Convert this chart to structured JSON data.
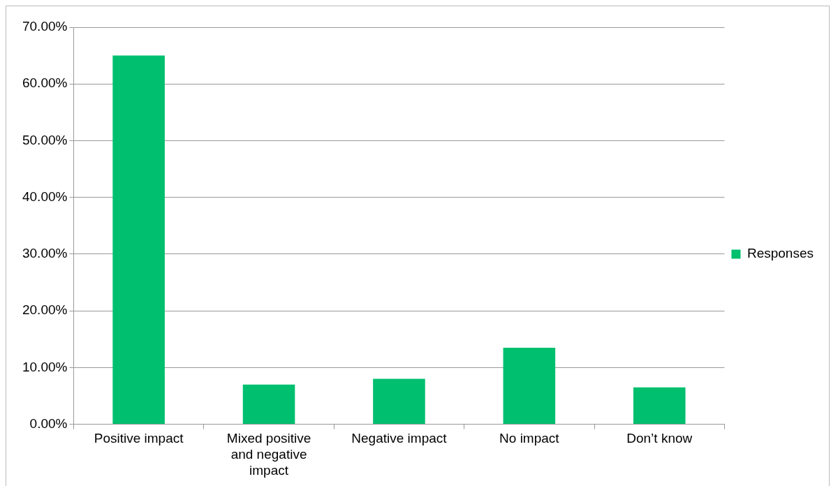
{
  "chart_data": {
    "type": "bar",
    "categories": [
      "Positive impact",
      "Mixed positive and negative impact",
      "Negative impact",
      "No impact",
      "Don’t know"
    ],
    "series": [
      {
        "name": "Responses",
        "color": "#00bf6f",
        "values": [
          65,
          7,
          8,
          13.5,
          6.5
        ]
      }
    ],
    "ylim": [
      0,
      70
    ],
    "yticks": [
      {
        "value": 0,
        "label": "0.00%"
      },
      {
        "value": 10,
        "label": "10.00%"
      },
      {
        "value": 20,
        "label": "20.00%"
      },
      {
        "value": 30,
        "label": "30.00%"
      },
      {
        "value": 40,
        "label": "40.00%"
      },
      {
        "value": 50,
        "label": "50.00%"
      },
      {
        "value": 60,
        "label": "60.00%"
      },
      {
        "value": 70,
        "label": "70.00%"
      }
    ],
    "grid": "y",
    "legend": "right"
  }
}
